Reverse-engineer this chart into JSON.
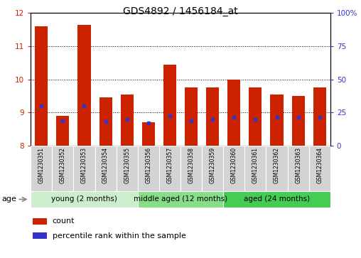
{
  "title": "GDS4892 / 1456184_at",
  "samples": [
    "GSM1230351",
    "GSM1230352",
    "GSM1230353",
    "GSM1230354",
    "GSM1230355",
    "GSM1230356",
    "GSM1230357",
    "GSM1230358",
    "GSM1230359",
    "GSM1230360",
    "GSM1230361",
    "GSM1230362",
    "GSM1230363",
    "GSM1230364"
  ],
  "count_values": [
    11.6,
    8.9,
    11.65,
    9.45,
    9.55,
    8.7,
    10.45,
    9.75,
    9.75,
    10.0,
    9.75,
    9.55,
    9.5,
    9.75
  ],
  "percentile_values": [
    9.2,
    8.75,
    9.2,
    8.72,
    8.8,
    8.68,
    8.9,
    8.75,
    8.8,
    8.85,
    8.8,
    8.85,
    8.85,
    8.85
  ],
  "bar_base": 8.0,
  "ylim_left": [
    8,
    12
  ],
  "ylim_right": [
    0,
    100
  ],
  "yticks_left": [
    8,
    9,
    10,
    11,
    12
  ],
  "yticks_right": [
    0,
    25,
    50,
    75,
    100
  ],
  "left_tick_labels": [
    "8",
    "9",
    "10",
    "11",
    "12"
  ],
  "right_tick_labels": [
    "0",
    "25",
    "50",
    "75",
    "100%"
  ],
  "bar_color": "#cc2200",
  "percentile_color": "#3333cc",
  "grid_color": "#000000",
  "bg_plot": "#ffffff",
  "bg_xticklabels": "#d3d3d3",
  "groups": [
    {
      "label": "young (2 months)",
      "start": 0,
      "end": 5,
      "color": "#cceecc"
    },
    {
      "label": "middle aged (12 months)",
      "start": 5,
      "end": 9,
      "color": "#88dd88"
    },
    {
      "label": "aged (24 months)",
      "start": 9,
      "end": 14,
      "color": "#44cc55"
    }
  ],
  "age_label": "age",
  "legend_count_label": "count",
  "legend_percentile_label": "percentile rank within the sample",
  "bar_width": 0.6,
  "title_fontsize": 10,
  "tick_fontsize": 7.5,
  "group_fontsize": 7.5,
  "legend_fontsize": 8
}
